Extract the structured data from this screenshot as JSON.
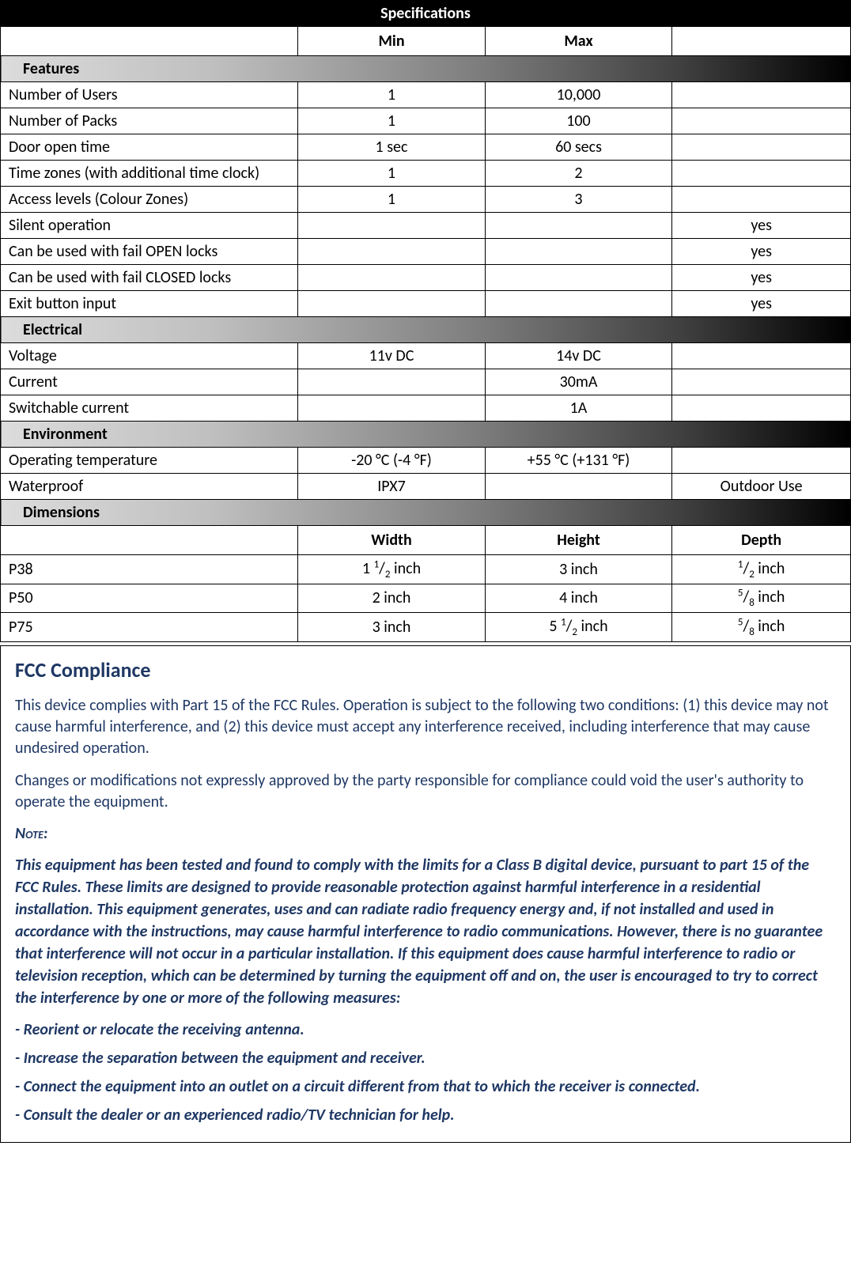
{
  "specTitle": "Specifications",
  "columns": {
    "min": "Min",
    "max": "Max",
    "extra": ""
  },
  "dimColumns": {
    "width": "Width",
    "height": "Height",
    "depth": "Depth"
  },
  "sections": [
    {
      "name": "Features",
      "rows": [
        {
          "label": "Number of Users",
          "min": "1",
          "max": "10,000",
          "extra": ""
        },
        {
          "label": "Number of Packs",
          "min": "1",
          "max": "100",
          "extra": ""
        },
        {
          "label": "Door open time",
          "min": "1 sec",
          "max": "60 secs",
          "extra": ""
        },
        {
          "label": "Time zones (with additional time clock)",
          "min": "1",
          "max": "2",
          "extra": ""
        },
        {
          "label": "Access levels (Colour Zones)",
          "min": "1",
          "max": "3",
          "extra": ""
        },
        {
          "label": "Silent operation",
          "min": "",
          "max": "",
          "extra": "yes"
        },
        {
          "label": "Can be used with fail OPEN locks",
          "min": "",
          "max": "",
          "extra": "yes"
        },
        {
          "label": "Can be used with fail CLOSED locks",
          "min": "",
          "max": "",
          "extra": "yes"
        },
        {
          "label": "Exit button input",
          "min": "",
          "max": "",
          "extra": "yes"
        }
      ]
    },
    {
      "name": "Electrical",
      "rows": [
        {
          "label": "Voltage",
          "min": "11v DC",
          "max": "14v DC",
          "extra": ""
        },
        {
          "label": "Current",
          "min": "",
          "max": "30mA",
          "extra": ""
        },
        {
          "label": "Switchable current",
          "min": "",
          "max": "1A",
          "extra": ""
        }
      ]
    },
    {
      "name": "Environment",
      "rows": [
        {
          "label": "Operating temperature",
          "min": "-20 °C  (-4 °F)",
          "max": "+55 °C  (+131 °F)",
          "extra": ""
        },
        {
          "label": "Waterproof",
          "min": "IPX7",
          "max": "",
          "extra": "Outdoor Use"
        }
      ]
    }
  ],
  "dimensionsSection": {
    "name": "Dimensions",
    "rows": [
      {
        "label": "P38",
        "width": {
          "whole": "1",
          "num": "1",
          "den": "2",
          "unit": " inch"
        },
        "height": {
          "plain": "3 inch"
        },
        "depth": {
          "num": "1",
          "den": "2",
          "unit": " inch"
        }
      },
      {
        "label": "P50",
        "width": {
          "plain": "2 inch"
        },
        "height": {
          "plain": "4 inch"
        },
        "depth": {
          "num": "5",
          "den": "8",
          "unit": " inch"
        }
      },
      {
        "label": "P75",
        "width": {
          "plain": "3 inch"
        },
        "height": {
          "whole": "5",
          "num": "1",
          "den": "2",
          "unit": " inch"
        },
        "depth": {
          "num": "5",
          "den": "8",
          "unit": " inch"
        }
      }
    ]
  },
  "compliance": {
    "title": "FCC Compliance",
    "para1": "This device complies with Part 15 of the FCC Rules. Operation is subject to the following two conditions: (1) this device may not cause harmful interference, and (2) this device must accept any interference received, including interference that may cause undesired operation.",
    "para2": "Changes or modifications not expressly approved by the party responsible for compliance could void the user's authority to operate the equipment.",
    "noteLabel": "Note:",
    "noteBody": "This equipment has been tested and found to comply with the limits for a Class B digital device, pursuant to part 15 of the FCC Rules. These limits are designed to provide reasonable protection against harmful interference  in a residential installation. This equipment generates, uses and can radiate radio frequency energy  and, if not installed and used in accordance with the instructions, may cause harmful interference  to radio communications. However, there is no guarantee that interference will not occur in a particular installation. If this equipment does cause harmful interference to radio or television reception, which can be determined by turning the equipment off and on, the user is encouraged to try to correct the interference by one or more of the following measures:",
    "bullets": [
      "- Reorient or relocate the receiving antenna.",
      "- Increase the separation between the equipment and receiver.",
      "- Connect the equipment into an outlet on a circuit different from that to which the receiver is connected.",
      "- Consult the dealer or an experienced radio/TV technician for help."
    ]
  },
  "colors": {
    "titleBg": "#000000",
    "titleFg": "#ffffff",
    "gradientStart": "#dcdcdc",
    "gradientEnd": "#000000",
    "border": "#000000",
    "complianceText": "#1f3864"
  }
}
